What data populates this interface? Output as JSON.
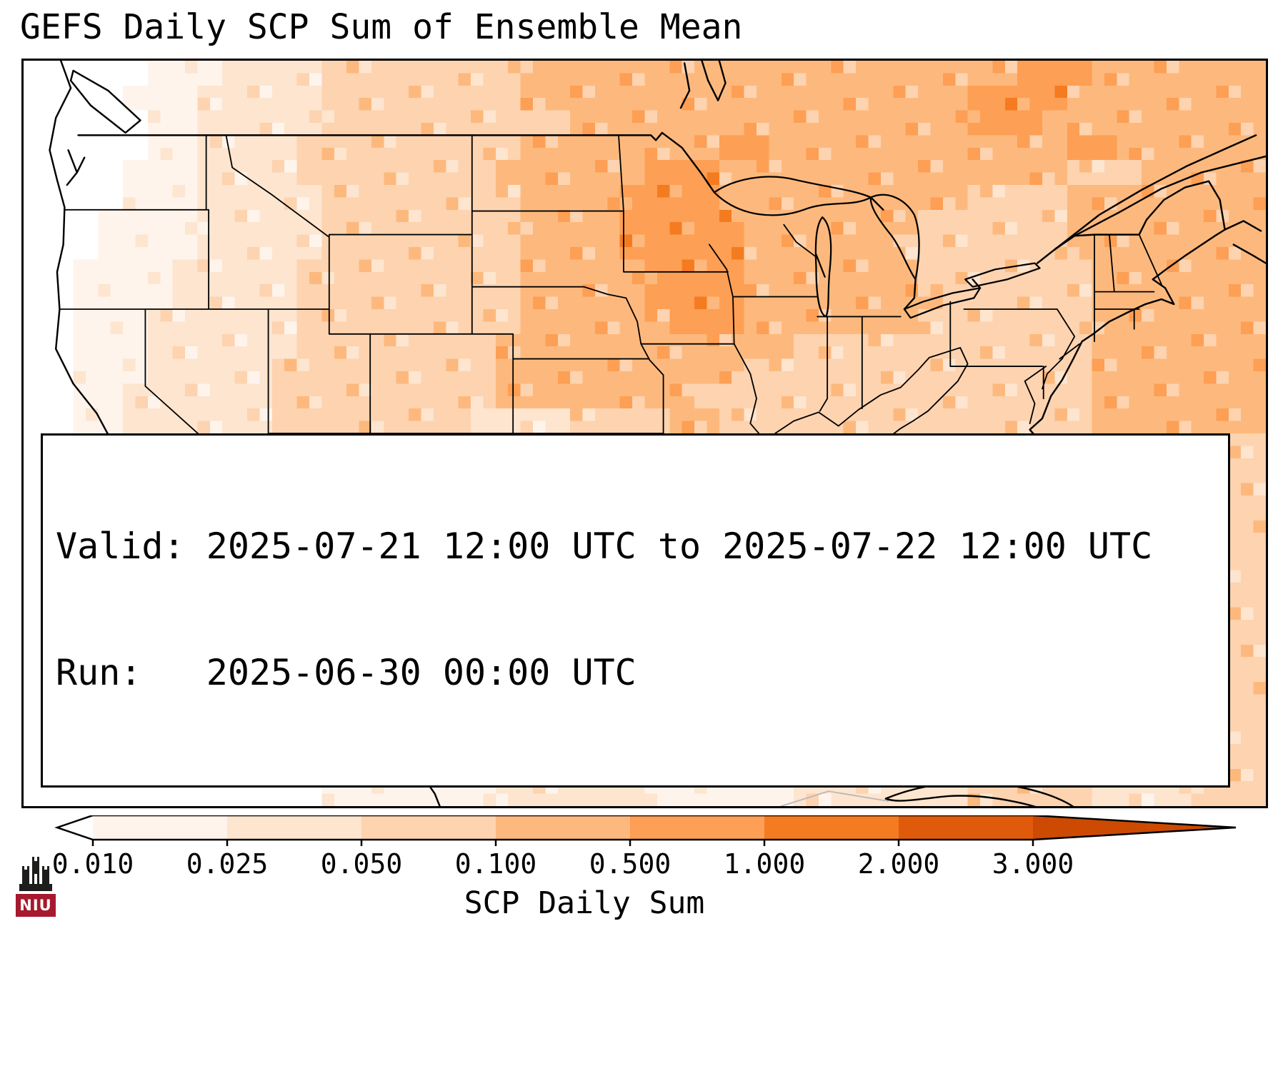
{
  "title": "GEFS Daily SCP Sum of Ensemble Mean",
  "map": {
    "info_box": {
      "line1": "Valid: 2025-07-21 12:00 UTC to 2025-07-22 12:00 UTC",
      "line2": "Run:   2025-06-30 00:00 UTC"
    }
  },
  "colorbar": {
    "label": "SCP Daily Sum",
    "ticks": [
      "0.010",
      "0.025",
      "0.050",
      "0.100",
      "0.500",
      "1.000",
      "2.000",
      "3.000"
    ],
    "segment_colors": [
      "#fef4ec",
      "#fde5cf",
      "#fdd3b0",
      "#fdb97d",
      "#fd9f54",
      "#f57b20",
      "#e05a0c"
    ],
    "under_color": "#ffffff",
    "over_color": "#cc4a02"
  },
  "logo": {
    "text": "NIU",
    "band_color": "#a6192e",
    "emblem_color": "#1d1d1b"
  },
  "chart_data": {
    "type": "heatmap",
    "title": "GEFS Daily SCP Sum of Ensemble Mean",
    "colorbar_label": "SCP Daily Sum",
    "levels": [
      0.01,
      0.025,
      0.05,
      0.1,
      0.5,
      1.0,
      2.0,
      3.0
    ],
    "valid_window": "2025-07-21 12:00 UTC to 2025-07-22 12:00 UTC",
    "run": "2025-06-30 00:00 UTC",
    "region": "Continental United States with southern Canada, northern Mexico, Gulf of Mexico and western Atlantic",
    "grid": {
      "ncols": 50,
      "nrows": 30,
      "encoding": "run-length per row as valuexcount, row 0 = north (~52N), col 0 = west (~126W); value = color bin index into palette",
      "palette": [
        "#ffffff",
        "#fef4ec",
        "#fde5cf",
        "#fdd3b0",
        "#fdb97d",
        "#fd9f54",
        "#f57b20",
        "#e05a0c",
        "#cc4a02"
      ],
      "rows": [
        "0x5,1x3,2x4,3x8,4x20,5x3,4x7",
        "0x4,1x3,2x5,3x8,4x18,5x4,4x8",
        "0x5,1x2,2x5,3x10,4x16,5x3,4x9",
        "0x5,1x2,2x4,3x9,4x8,5x2,4x12,5x2,4x6",
        "0x4,1x3,2x4,3x8,4x6,5x3,4x14,3x3,4x5",
        "0x4,1x3,2x5,3x8,4x4,5x4,4x10,3x4,4x8",
        "0x3,1x4,2x5,3x8,4x4,5x5,4x7,3x6,4x8",
        "0x3,1x4,2x5,3x8,4x4,5x5,4x6,3x7,4x8",
        "0x2,1x4,2x5,3x9,4x5,5x4,4x7,3x7,4x7",
        "0x2,1x4,2x5,3x9,4x5,5x4,4x8,3x6,4x7",
        "0x2,1x3,2x6,3x9,4x6,5x3,4x7,3x7,4x7",
        "0x2,1x3,2x6,3x8,4x12,3x12,4x7",
        "0x2,1x3,2x5,3x9,4x10,3x14,4x7",
        "0x2,1x2,2x6,3x9,4x8,3x16,4x7",
        "0x2,1x2,2x6,3x8,2x4,3x4,4x2,3x15,4x7",
        "0x2,1x2,2x5,3x8,2x5,3x3,4x3,3x13,4x5,3x4",
        "0x2,1x2,2x4,3x7,2x6,3x12,4x3,3x8,4x3,3x3",
        "0x2,1x2,2x4,3x6,2x7,1x3,2x6,3x10,4x4,3x6",
        "0x3,1x3,2x4,3x5,2x5,1x4,2x6,3x10,4x5,3x5",
        "0x4,1x4,2x4,3x5,2x4,1x4,2x5,3x9,4x6,3x5",
        "0x6,1x4,2x5,3x4,2x3,1x4,2x4,3x3,4x2,3x6,4x5,3x4",
        "0x8,1x4,2x4,3x3,2x2,1x2,2x2,4x2,5x4,4x4,3x5,4x5,3x5",
        "0x9,1x4,2x5,3x3,2x2,1x2,4x2,6x3,5x3,4x4,3x4,4x5,3x4",
        "0x9,1x4,2x5,1x3,2x3,4x3,5x3,4x6,3x4,4x6,3x4",
        "0x10,1x4,3x4,1x3,2x4,3x3,4x8,3x5,4x5,3x4",
        "0x10,1x5,2x4,1x4,2x4,3x6,4x6,3x5,4x2,3x4",
        "0x11,1x5,2x5,1x4,2x5,3x8,4x4,3x8",
        "0x11,1x6,2x5,1x5,2x6,3x8,2x4,3x5",
        "0x12,1x6,2x6,1x5,2x7,3x6,2x4,3x4",
        "0x12,1x7,2x6,1x6,2x7,3x5,2x4,3x3"
      ]
    }
  }
}
